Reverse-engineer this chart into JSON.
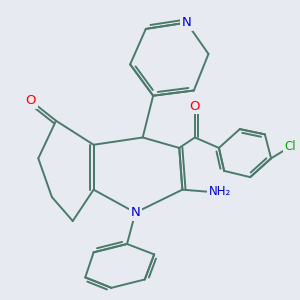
{
  "background_color": "#e8eaf2",
  "bond_color": "#4a7a6a",
  "bond_width": 1.4,
  "atom_colors": {
    "O": "#ff0000",
    "N": "#0000cc",
    "Cl": "#00aa00",
    "C": "#4a7a6a"
  },
  "figsize": [
    3.0,
    3.0
  ],
  "dpi": 100
}
